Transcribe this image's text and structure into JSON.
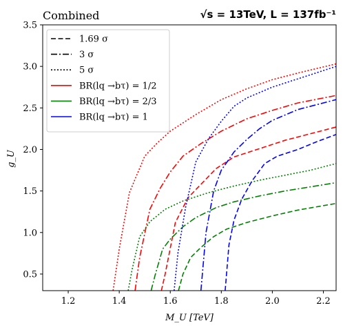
{
  "chart_data": {
    "type": "line",
    "title_left": "Combined",
    "title_right": "√s = 13TeV, L = 137fb⁻¹",
    "xlabel": "M_U [TeV]",
    "ylabel": "g_U",
    "xlim": [
      1.1,
      2.25
    ],
    "ylim": [
      0.3,
      3.5
    ],
    "xticks": [
      1.2,
      1.4,
      1.6,
      1.8,
      2.0,
      2.2
    ],
    "xtick_labels": [
      "1.2",
      "1.4",
      "1.6",
      "1.8",
      "2.0",
      "2.2"
    ],
    "yticks": [
      0.5,
      1.0,
      1.5,
      2.0,
      2.5,
      3.0,
      3.5
    ],
    "ytick_labels": [
      "0.5",
      "1.0",
      "1.5",
      "2.0",
      "2.5",
      "3.0",
      "3.5"
    ],
    "grid": false,
    "legend_position": "top-left",
    "legend": [
      {
        "label": "1.69 σ",
        "style": "dashed",
        "color": "#000000"
      },
      {
        "label": "3 σ",
        "style": "dashdot",
        "color": "#000000"
      },
      {
        "label": "5 σ",
        "style": "dotted",
        "color": "#000000"
      },
      {
        "label": "BR(lq →bτ) = 1/2",
        "style": "solid",
        "color": "#ff0000"
      },
      {
        "label": "BR(lq →bτ) = 2/3",
        "style": "solid",
        "color": "#008000"
      },
      {
        "label": "BR(lq →bτ) = 1",
        "style": "solid",
        "color": "#0000ff"
      }
    ],
    "series": [
      {
        "name": "BR(lq →bτ) = 1/2, 5 σ",
        "color": "#ff0000",
        "style": "dotted",
        "x": [
          1.376,
          1.4,
          1.44,
          1.5,
          1.55,
          1.6,
          1.7,
          1.8,
          1.9,
          2.0,
          2.1,
          2.25
        ],
        "y": [
          0.3,
          0.8,
          1.48,
          1.92,
          2.08,
          2.22,
          2.42,
          2.6,
          2.73,
          2.84,
          2.92,
          3.03
        ]
      },
      {
        "name": "BR(lq →bτ) = 1/2, 3 σ",
        "color": "#ff0000",
        "style": "dashdot",
        "x": [
          1.462,
          1.48,
          1.52,
          1.56,
          1.6,
          1.65,
          1.72,
          1.8,
          1.9,
          2.0,
          2.1,
          2.25
        ],
        "y": [
          0.3,
          0.7,
          1.28,
          1.53,
          1.73,
          1.92,
          2.07,
          2.22,
          2.37,
          2.47,
          2.56,
          2.65
        ]
      },
      {
        "name": "BR(lq →bτ) = 1/2, 1.69 σ",
        "color": "#ff0000",
        "style": "dashed",
        "x": [
          1.565,
          1.58,
          1.62,
          1.67,
          1.72,
          1.78,
          1.85,
          1.95,
          2.05,
          2.15,
          2.25
        ],
        "y": [
          0.3,
          0.5,
          1.12,
          1.42,
          1.58,
          1.77,
          1.91,
          2.01,
          2.11,
          2.19,
          2.27
        ]
      },
      {
        "name": "BR(lq →bτ) = 2/3, 5 σ",
        "color": "#008000",
        "style": "dotted",
        "x": [
          1.435,
          1.45,
          1.48,
          1.52,
          1.58,
          1.65,
          1.75,
          1.85,
          1.95,
          2.05,
          2.15,
          2.25
        ],
        "y": [
          0.3,
          0.55,
          0.95,
          1.13,
          1.28,
          1.38,
          1.48,
          1.56,
          1.63,
          1.69,
          1.75,
          1.83
        ]
      },
      {
        "name": "BR(lq →bτ) = 2/3, 3 σ",
        "color": "#008000",
        "style": "dashdot",
        "x": [
          1.525,
          1.54,
          1.57,
          1.6,
          1.65,
          1.7,
          1.78,
          1.85,
          1.95,
          2.05,
          2.15,
          2.25
        ],
        "y": [
          0.3,
          0.48,
          0.8,
          0.92,
          1.07,
          1.18,
          1.3,
          1.37,
          1.44,
          1.5,
          1.55,
          1.6
        ]
      },
      {
        "name": "BR(lq →bτ) = 2/3, 1.69 σ",
        "color": "#008000",
        "style": "dashed",
        "x": [
          1.632,
          1.65,
          1.68,
          1.72,
          1.77,
          1.82,
          1.9,
          2.0,
          2.1,
          2.25
        ],
        "y": [
          0.3,
          0.5,
          0.7,
          0.82,
          0.95,
          1.04,
          1.12,
          1.2,
          1.27,
          1.35
        ]
      },
      {
        "name": "BR(lq →bτ) = 1, 5 σ",
        "color": "#0000ff",
        "style": "dotted",
        "x": [
          1.615,
          1.63,
          1.66,
          1.7,
          1.75,
          1.8,
          1.85,
          1.9,
          2.0,
          2.1,
          2.25
        ],
        "y": [
          0.3,
          0.75,
          1.3,
          1.85,
          2.13,
          2.34,
          2.52,
          2.62,
          2.75,
          2.85,
          3.0
        ]
      },
      {
        "name": "BR(lq →bτ) = 1, 3 σ",
        "color": "#0000ff",
        "style": "dashdot",
        "x": [
          1.72,
          1.74,
          1.77,
          1.8,
          1.85,
          1.9,
          1.95,
          2.0,
          2.1,
          2.25
        ],
        "y": [
          0.3,
          1.0,
          1.5,
          1.75,
          1.97,
          2.12,
          2.25,
          2.35,
          2.48,
          2.6
        ]
      },
      {
        "name": "BR(lq →bτ) = 1, 1.69 σ",
        "color": "#0000ff",
        "style": "dashed",
        "x": [
          1.815,
          1.83,
          1.85,
          1.88,
          1.92,
          1.97,
          2.02,
          2.1,
          2.18,
          2.25
        ],
        "y": [
          0.3,
          0.85,
          1.15,
          1.4,
          1.62,
          1.83,
          1.92,
          2.0,
          2.1,
          2.18
        ]
      }
    ]
  }
}
